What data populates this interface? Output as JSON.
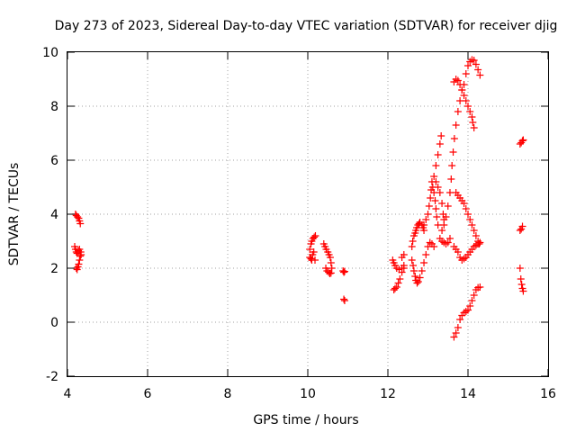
{
  "chart_data": {
    "type": "scatter",
    "title": "Day 273 of 2023, Sidereal Day-to-day VTEC variation (SDTVAR) for receiver djig",
    "xlabel": "GPS time / hours",
    "ylabel": "SDTVAR / TECUs",
    "xlim": [
      4,
      16
    ],
    "ylim": [
      -2,
      10
    ],
    "xticks": [
      "4",
      "6",
      "8",
      "10",
      "12",
      "14",
      "16"
    ],
    "yticks": [
      "-2",
      "0",
      "2",
      "4",
      "6",
      "8",
      "10"
    ],
    "grid": true,
    "marker": "+",
    "series_color": "#ff0000",
    "points": [
      [
        4.2,
        4.0
      ],
      [
        4.22,
        3.95
      ],
      [
        4.25,
        3.9
      ],
      [
        4.28,
        3.85
      ],
      [
        4.3,
        3.75
      ],
      [
        4.32,
        3.65
      ],
      [
        4.18,
        2.8
      ],
      [
        4.2,
        2.7
      ],
      [
        4.22,
        2.6
      ],
      [
        4.24,
        2.55
      ],
      [
        4.27,
        2.65
      ],
      [
        4.3,
        2.7
      ],
      [
        4.33,
        2.6
      ],
      [
        4.22,
        2.0
      ],
      [
        4.24,
        1.95
      ],
      [
        4.26,
        2.05
      ],
      [
        4.28,
        2.15
      ],
      [
        4.3,
        2.3
      ],
      [
        4.32,
        2.45
      ],
      [
        4.34,
        2.5
      ],
      [
        10.05,
        2.4
      ],
      [
        10.08,
        2.35
      ],
      [
        10.1,
        2.3
      ],
      [
        10.12,
        2.5
      ],
      [
        10.15,
        2.6
      ],
      [
        10.18,
        2.3
      ],
      [
        10.05,
        2.7
      ],
      [
        10.08,
        2.9
      ],
      [
        10.1,
        3.0
      ],
      [
        10.13,
        3.1
      ],
      [
        10.16,
        3.15
      ],
      [
        10.19,
        3.2
      ],
      [
        10.4,
        2.9
      ],
      [
        10.43,
        2.8
      ],
      [
        10.46,
        2.7
      ],
      [
        10.5,
        2.6
      ],
      [
        10.53,
        2.5
      ],
      [
        10.56,
        2.4
      ],
      [
        10.58,
        2.2
      ],
      [
        10.6,
        2.0
      ],
      [
        10.45,
        2.0
      ],
      [
        10.48,
        1.9
      ],
      [
        10.52,
        1.85
      ],
      [
        10.55,
        1.8
      ],
      [
        10.58,
        1.82
      ],
      [
        10.88,
        1.9
      ],
      [
        10.9,
        1.85
      ],
      [
        10.92,
        1.88
      ],
      [
        10.9,
        0.85
      ],
      [
        10.92,
        0.8
      ],
      [
        12.15,
        1.2
      ],
      [
        12.18,
        1.25
      ],
      [
        12.22,
        1.3
      ],
      [
        12.26,
        1.45
      ],
      [
        12.3,
        1.6
      ],
      [
        12.35,
        1.85
      ],
      [
        12.4,
        2.0
      ],
      [
        12.12,
        2.3
      ],
      [
        12.15,
        2.2
      ],
      [
        12.18,
        2.1
      ],
      [
        12.22,
        2.0
      ],
      [
        12.28,
        1.95
      ],
      [
        12.35,
        2.0
      ],
      [
        12.4,
        2.1
      ],
      [
        12.35,
        2.4
      ],
      [
        12.4,
        2.5
      ],
      [
        12.6,
        2.8
      ],
      [
        12.62,
        3.0
      ],
      [
        12.65,
        3.2
      ],
      [
        12.68,
        3.3
      ],
      [
        12.7,
        3.4
      ],
      [
        12.72,
        3.5
      ],
      [
        12.75,
        3.6
      ],
      [
        12.78,
        3.65
      ],
      [
        12.8,
        3.7
      ],
      [
        12.85,
        3.6
      ],
      [
        12.88,
        3.5
      ],
      [
        12.9,
        3.4
      ],
      [
        12.6,
        2.3
      ],
      [
        12.63,
        2.1
      ],
      [
        12.65,
        1.9
      ],
      [
        12.68,
        1.7
      ],
      [
        12.7,
        1.55
      ],
      [
        12.73,
        1.45
      ],
      [
        12.76,
        1.5
      ],
      [
        12.8,
        1.65
      ],
      [
        12.85,
        1.9
      ],
      [
        12.9,
        2.2
      ],
      [
        12.95,
        2.5
      ],
      [
        13.0,
        2.8
      ],
      [
        13.05,
        2.95
      ],
      [
        13.1,
        2.9
      ],
      [
        13.15,
        2.8
      ],
      [
        12.9,
        3.6
      ],
      [
        12.95,
        3.8
      ],
      [
        13.0,
        4.0
      ],
      [
        13.03,
        4.3
      ],
      [
        13.06,
        4.6
      ],
      [
        13.08,
        4.9
      ],
      [
        13.1,
        5.2
      ],
      [
        13.12,
        5.0
      ],
      [
        13.15,
        4.8
      ],
      [
        13.18,
        4.5
      ],
      [
        13.2,
        4.2
      ],
      [
        13.22,
        3.9
      ],
      [
        13.25,
        3.6
      ],
      [
        13.15,
        5.4
      ],
      [
        13.2,
        5.8
      ],
      [
        13.25,
        6.2
      ],
      [
        13.3,
        6.6
      ],
      [
        13.33,
        6.9
      ],
      [
        13.2,
        5.2
      ],
      [
        13.25,
        5.0
      ],
      [
        13.3,
        4.8
      ],
      [
        13.35,
        4.4
      ],
      [
        13.38,
        4.0
      ],
      [
        13.4,
        3.8
      ],
      [
        13.3,
        3.1
      ],
      [
        13.35,
        3.0
      ],
      [
        13.4,
        2.95
      ],
      [
        13.45,
        2.9
      ],
      [
        13.5,
        2.95
      ],
      [
        13.55,
        3.1
      ],
      [
        13.35,
        3.4
      ],
      [
        13.4,
        3.6
      ],
      [
        13.45,
        3.9
      ],
      [
        13.5,
        4.3
      ],
      [
        13.55,
        4.8
      ],
      [
        13.58,
        5.3
      ],
      [
        13.6,
        5.8
      ],
      [
        13.63,
        6.3
      ],
      [
        13.66,
        6.8
      ],
      [
        13.7,
        7.3
      ],
      [
        13.75,
        7.8
      ],
      [
        13.8,
        8.2
      ],
      [
        13.85,
        8.6
      ],
      [
        13.9,
        8.8
      ],
      [
        13.65,
        8.9
      ],
      [
        13.7,
        9.0
      ],
      [
        13.75,
        8.95
      ],
      [
        13.8,
        8.8
      ],
      [
        13.85,
        8.6
      ],
      [
        13.9,
        8.4
      ],
      [
        13.95,
        8.2
      ],
      [
        14.0,
        8.0
      ],
      [
        14.05,
        7.8
      ],
      [
        14.1,
        7.6
      ],
      [
        14.12,
        7.4
      ],
      [
        14.15,
        7.2
      ],
      [
        13.95,
        9.2
      ],
      [
        14.0,
        9.5
      ],
      [
        14.05,
        9.65
      ],
      [
        14.1,
        9.72
      ],
      [
        14.15,
        9.7
      ],
      [
        14.2,
        9.55
      ],
      [
        14.25,
        9.35
      ],
      [
        14.3,
        9.15
      ],
      [
        13.7,
        4.8
      ],
      [
        13.75,
        4.7
      ],
      [
        13.8,
        4.6
      ],
      [
        13.85,
        4.5
      ],
      [
        13.9,
        4.4
      ],
      [
        13.95,
        4.2
      ],
      [
        14.0,
        4.0
      ],
      [
        14.05,
        3.8
      ],
      [
        14.1,
        3.6
      ],
      [
        14.15,
        3.4
      ],
      [
        14.2,
        3.2
      ],
      [
        14.25,
        3.0
      ],
      [
        14.28,
        2.9
      ],
      [
        13.65,
        2.8
      ],
      [
        13.7,
        2.7
      ],
      [
        13.75,
        2.6
      ],
      [
        13.8,
        2.4
      ],
      [
        13.85,
        2.3
      ],
      [
        13.9,
        2.35
      ],
      [
        13.95,
        2.4
      ],
      [
        14.0,
        2.5
      ],
      [
        14.05,
        2.6
      ],
      [
        14.1,
        2.7
      ],
      [
        14.15,
        2.8
      ],
      [
        14.2,
        2.85
      ],
      [
        14.25,
        2.9
      ],
      [
        14.3,
        2.95
      ],
      [
        13.65,
        -0.55
      ],
      [
        13.7,
        -0.4
      ],
      [
        13.75,
        -0.2
      ],
      [
        13.8,
        0.1
      ],
      [
        13.85,
        0.25
      ],
      [
        13.9,
        0.35
      ],
      [
        13.95,
        0.4
      ],
      [
        14.0,
        0.45
      ],
      [
        14.05,
        0.6
      ],
      [
        14.1,
        0.8
      ],
      [
        14.15,
        1.0
      ],
      [
        14.2,
        1.2
      ],
      [
        14.25,
        1.28
      ],
      [
        14.3,
        1.3
      ],
      [
        15.3,
        6.6
      ],
      [
        15.33,
        6.65
      ],
      [
        15.36,
        6.72
      ],
      [
        15.38,
        6.75
      ],
      [
        15.3,
        3.4
      ],
      [
        15.33,
        3.45
      ],
      [
        15.36,
        3.55
      ],
      [
        15.3,
        2.0
      ],
      [
        15.32,
        1.6
      ],
      [
        15.34,
        1.4
      ],
      [
        15.36,
        1.25
      ],
      [
        15.38,
        1.15
      ]
    ]
  }
}
